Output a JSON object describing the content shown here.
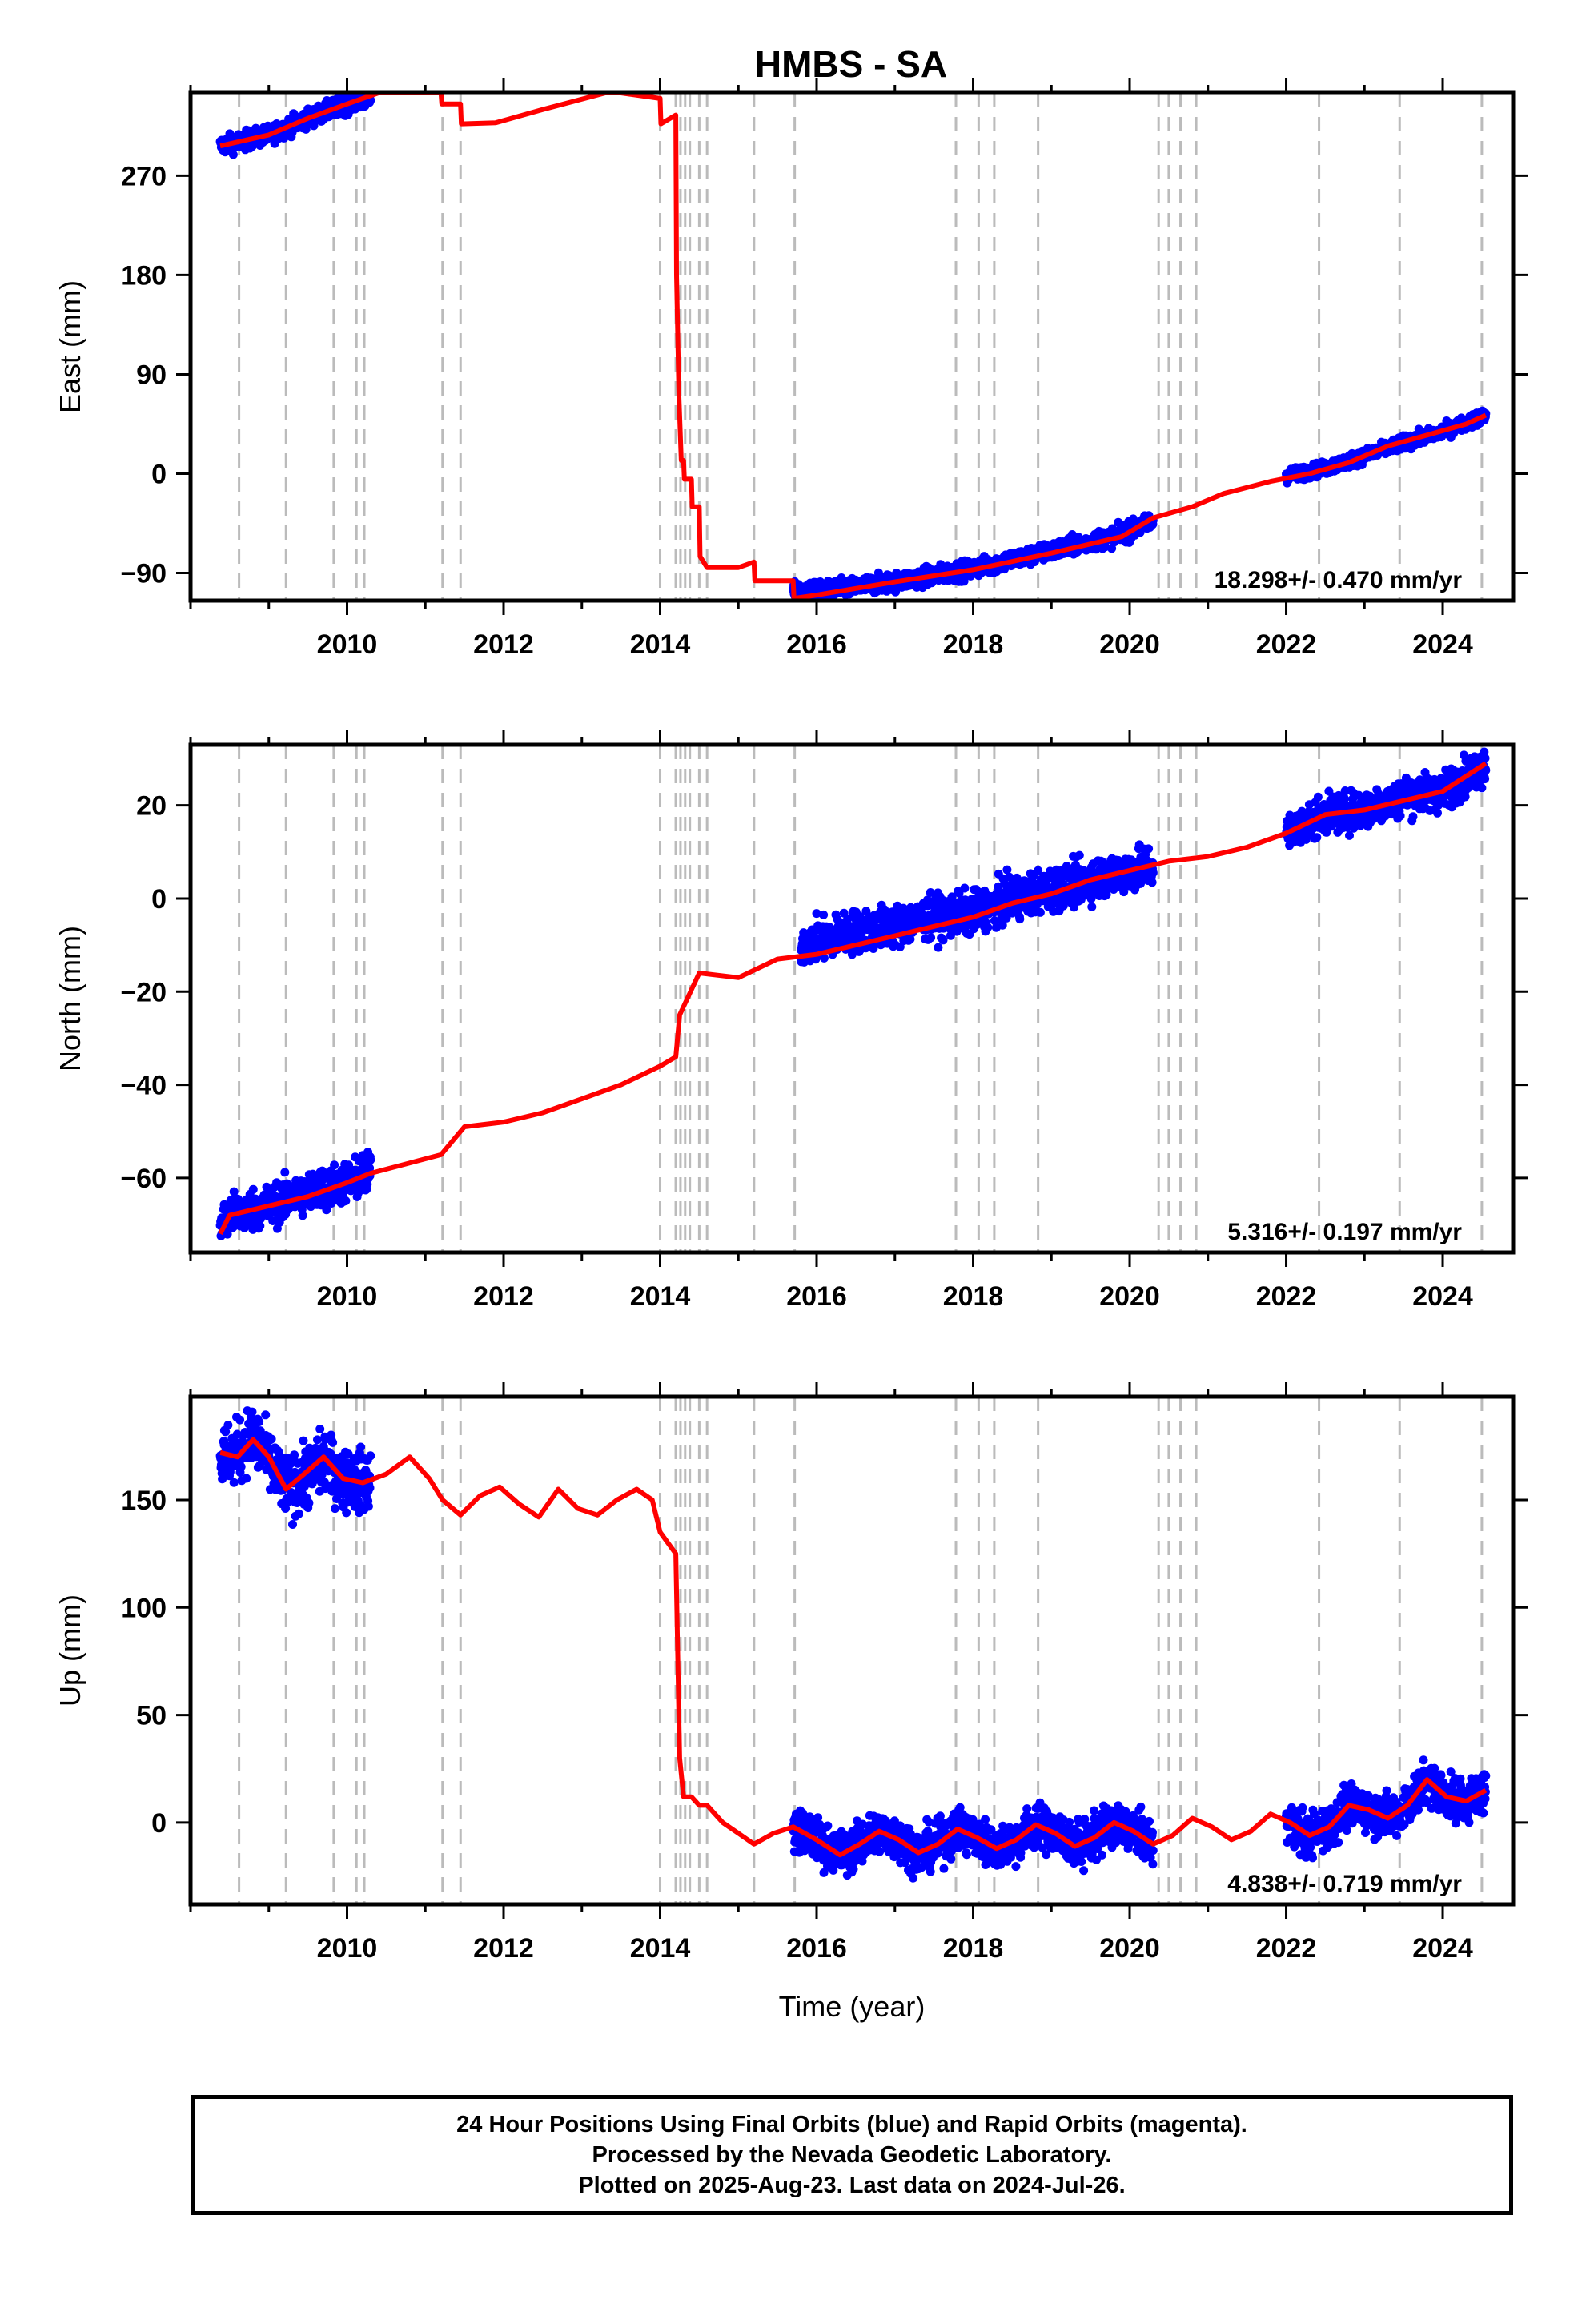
{
  "title": "HMBS - SA",
  "footer": {
    "line1": "24 Hour Positions Using Final Orbits (blue) and Rapid Orbits (magenta).",
    "line2": "Processed by the Nevada Geodetic Laboratory.",
    "line3": "Plotted on 2025-Aug-23. Last data on 2024-Jul-26."
  },
  "colors": {
    "final_orbits": "#0000ff",
    "model": "#ff0000",
    "steps": "#bbbbbb"
  },
  "chart_data": [
    {
      "type": "scatter",
      "component": "east",
      "ylabel": "East (mm)",
      "xlabel": "",
      "xlim": [
        2008.0,
        2024.9
      ],
      "ylim": [
        -115,
        345
      ],
      "xticks": [
        2010,
        2012,
        2014,
        2016,
        2018,
        2020,
        2022,
        2024
      ],
      "yticks": [
        -90,
        0,
        90,
        180,
        270
      ],
      "rate_label": "18.298+/- 0.470 mm/yr",
      "step_lines": [
        2008.62,
        2009.22,
        2009.83,
        2010.12,
        2010.22,
        2011.22,
        2011.45,
        2014.0,
        2014.2,
        2014.26,
        2014.32,
        2014.38,
        2014.5,
        2014.6,
        2015.2,
        2015.72,
        2017.78,
        2018.07,
        2018.27,
        2018.83,
        2020.37,
        2020.5,
        2020.65,
        2020.85,
        2022.42,
        2023.45,
        2024.5
      ],
      "model": {
        "x": [
          2008.38,
          2009.0,
          2009.5,
          2010.0,
          2010.4,
          2011.2,
          2011.21,
          2011.45,
          2011.46,
          2011.9,
          2012.5,
          2013.3,
          2013.5,
          2014.0,
          2014.01,
          2014.2,
          2014.21,
          2014.24,
          2014.27,
          2014.3,
          2014.31,
          2014.4,
          2014.41,
          2014.5,
          2014.51,
          2014.6,
          2015.0,
          2015.2,
          2015.21,
          2015.7,
          2015.71,
          2016.0,
          2017.0,
          2018.0,
          2019.0,
          2019.9,
          2020.3,
          2020.8,
          2021.2,
          2021.8,
          2022.3,
          2022.8,
          2023.3,
          2023.8,
          2024.3,
          2024.55
        ],
        "y": [
          297,
          307,
          322,
          335,
          345,
          345,
          335,
          335,
          317,
          318,
          330,
          345,
          345,
          340,
          317,
          325,
          180,
          70,
          12,
          12,
          -5,
          -5,
          -30,
          -30,
          -75,
          -85,
          -85,
          -80,
          -97,
          -97,
          -113,
          -110,
          -98,
          -87,
          -72,
          -57,
          -40,
          -30,
          -18,
          -7,
          0,
          10,
          25,
          35,
          45,
          53
        ]
      },
      "scatter_segments": [
        {
          "x": [
            2008.38,
            2009.0,
            2009.5,
            2010.0,
            2010.3
          ],
          "y": [
            297,
            307,
            322,
            335,
            340
          ],
          "noise": 4
        },
        {
          "x": [
            2015.7,
            2016.0,
            2017.0,
            2018.0,
            2019.0,
            2019.9,
            2020.3
          ],
          "y": [
            -107,
            -107,
            -98,
            -86,
            -70,
            -55,
            -43
          ],
          "noise": 4
        },
        {
          "x": [
            2022.0,
            2022.5,
            2023.0,
            2023.5,
            2024.0,
            2024.55
          ],
          "y": [
            -2,
            5,
            16,
            28,
            38,
            53
          ],
          "noise": 3
        }
      ]
    },
    {
      "type": "scatter",
      "component": "north",
      "ylabel": "North (mm)",
      "xlabel": "",
      "xlim": [
        2008.0,
        2024.9
      ],
      "ylim": [
        -76,
        33
      ],
      "xticks": [
        2010,
        2012,
        2014,
        2016,
        2018,
        2020,
        2022,
        2024
      ],
      "yticks": [
        -60,
        -40,
        -20,
        0,
        20
      ],
      "rate_label": "5.316+/- 0.197 mm/yr",
      "step_lines": [
        2008.62,
        2009.22,
        2009.83,
        2010.12,
        2010.22,
        2011.22,
        2011.45,
        2014.0,
        2014.2,
        2014.26,
        2014.32,
        2014.38,
        2014.5,
        2014.6,
        2015.2,
        2015.72,
        2017.78,
        2018.07,
        2018.27,
        2018.83,
        2020.37,
        2020.5,
        2020.65,
        2020.85,
        2022.42,
        2023.45,
        2024.5
      ],
      "model": {
        "x": [
          2008.38,
          2008.5,
          2009.0,
          2009.5,
          2010.0,
          2010.3,
          2011.2,
          2011.5,
          2012.0,
          2012.5,
          2013.0,
          2013.5,
          2014.0,
          2014.2,
          2014.25,
          2014.5,
          2015.0,
          2015.5,
          2016.0,
          2016.5,
          2017.0,
          2017.5,
          2018.0,
          2018.5,
          2019.0,
          2019.5,
          2020.0,
          2020.5,
          2021.0,
          2021.5,
          2022.0,
          2022.5,
          2023.0,
          2023.5,
          2024.0,
          2024.55
        ],
        "y": [
          -72,
          -68,
          -66,
          -64,
          -61,
          -59,
          -55,
          -49,
          -48,
          -46,
          -43,
          -40,
          -36,
          -34,
          -25,
          -16,
          -17,
          -13,
          -12,
          -10,
          -8,
          -6,
          -4,
          -1,
          1,
          4,
          6,
          8,
          9,
          11,
          14,
          18,
          19,
          21,
          23,
          29
        ]
      },
      "scatter_segments": [
        {
          "x": [
            2008.38,
            2008.5,
            2009.0,
            2009.5,
            2010.0,
            2010.3
          ],
          "y": [
            -71,
            -68,
            -66,
            -63,
            -61,
            -59
          ],
          "noise": 2.2
        },
        {
          "x": [
            2015.8,
            2016.0,
            2016.5,
            2017.0,
            2017.5,
            2018.0,
            2018.5,
            2019.0,
            2019.5,
            2020.0,
            2020.3
          ],
          "y": [
            -10,
            -9,
            -7,
            -6,
            -4,
            -3,
            0,
            2,
            4,
            6,
            7
          ],
          "noise": 2.2
        },
        {
          "x": [
            2022.0,
            2022.5,
            2023.0,
            2023.5,
            2024.0,
            2024.55
          ],
          "y": [
            14,
            18,
            19,
            22,
            23,
            29
          ],
          "noise": 2.0
        }
      ]
    },
    {
      "type": "scatter",
      "component": "up",
      "ylabel": "Up (mm)",
      "xlabel": "Time (year)",
      "xlim": [
        2008.0,
        2024.9
      ],
      "ylim": [
        -38,
        198
      ],
      "xticks": [
        2010,
        2012,
        2014,
        2016,
        2018,
        2020,
        2022,
        2024
      ],
      "yticks": [
        0,
        50,
        100,
        150
      ],
      "rate_label": "4.838+/- 0.719 mm/yr",
      "step_lines": [
        2008.62,
        2009.22,
        2009.83,
        2010.12,
        2010.22,
        2011.22,
        2011.45,
        2014.0,
        2014.2,
        2014.26,
        2014.32,
        2014.38,
        2014.5,
        2014.6,
        2015.2,
        2015.72,
        2017.78,
        2018.07,
        2018.27,
        2018.83,
        2020.37,
        2020.5,
        2020.65,
        2020.85,
        2022.42,
        2023.45,
        2024.5
      ],
      "model": {
        "x": [
          2008.38,
          2008.6,
          2008.8,
          2009.0,
          2009.22,
          2009.45,
          2009.7,
          2009.95,
          2010.2,
          2010.5,
          2010.8,
          2011.05,
          2011.22,
          2011.45,
          2011.7,
          2011.95,
          2012.2,
          2012.45,
          2012.7,
          2012.95,
          2013.2,
          2013.45,
          2013.7,
          2013.9,
          2014.0,
          2014.2,
          2014.25,
          2014.3,
          2014.4,
          2014.5,
          2014.6,
          2014.8,
          2015.0,
          2015.2,
          2015.45,
          2015.7,
          2016.0,
          2016.3,
          2016.55,
          2016.8,
          2017.05,
          2017.3,
          2017.55,
          2017.8,
          2018.05,
          2018.3,
          2018.55,
          2018.8,
          2019.05,
          2019.3,
          2019.55,
          2019.8,
          2020.05,
          2020.3,
          2020.55,
          2020.8,
          2021.05,
          2021.3,
          2021.55,
          2021.8,
          2022.05,
          2022.3,
          2022.55,
          2022.8,
          2023.05,
          2023.3,
          2023.55,
          2023.8,
          2024.05,
          2024.3,
          2024.55
        ],
        "y": [
          172,
          170,
          178,
          170,
          155,
          162,
          170,
          160,
          158,
          162,
          170,
          160,
          150,
          143,
          152,
          156,
          148,
          142,
          155,
          146,
          143,
          150,
          155,
          150,
          135,
          125,
          30,
          12,
          12,
          8,
          8,
          0,
          -5,
          -10,
          -5,
          -2,
          -8,
          -15,
          -10,
          -4,
          -8,
          -14,
          -10,
          -3,
          -7,
          -12,
          -8,
          -1,
          -5,
          -11,
          -7,
          0,
          -4,
          -10,
          -6,
          2,
          -2,
          -8,
          -4,
          4,
          0,
          -6,
          -2,
          8,
          6,
          2,
          8,
          20,
          12,
          10,
          15
        ]
      },
      "scatter_segments": [
        {
          "x": [
            2008.38,
            2008.6,
            2008.8,
            2009.0,
            2009.22,
            2009.45,
            2009.7,
            2009.95,
            2010.2,
            2010.3
          ],
          "y": [
            170,
            172,
            180,
            168,
            155,
            160,
            168,
            160,
            158,
            160
          ],
          "noise": 7
        },
        {
          "x": [
            2015.7,
            2016.0,
            2016.3,
            2016.55,
            2016.8,
            2017.05,
            2017.3,
            2017.55,
            2017.8,
            2018.05,
            2018.3,
            2018.55,
            2018.8,
            2019.05,
            2019.3,
            2019.55,
            2019.8,
            2020.05,
            2020.3
          ],
          "y": [
            -3,
            -8,
            -15,
            -10,
            -4,
            -8,
            -14,
            -10,
            -3,
            -7,
            -12,
            -8,
            -1,
            -5,
            -11,
            -7,
            0,
            -4,
            -10
          ],
          "noise": 5
        },
        {
          "x": [
            2022.0,
            2022.3,
            2022.55,
            2022.8,
            2023.05,
            2023.3,
            2023.55,
            2023.8,
            2024.05,
            2024.3,
            2024.55
          ],
          "y": [
            0,
            -6,
            -2,
            8,
            6,
            2,
            8,
            20,
            12,
            10,
            15
          ],
          "noise": 5
        }
      ]
    }
  ]
}
